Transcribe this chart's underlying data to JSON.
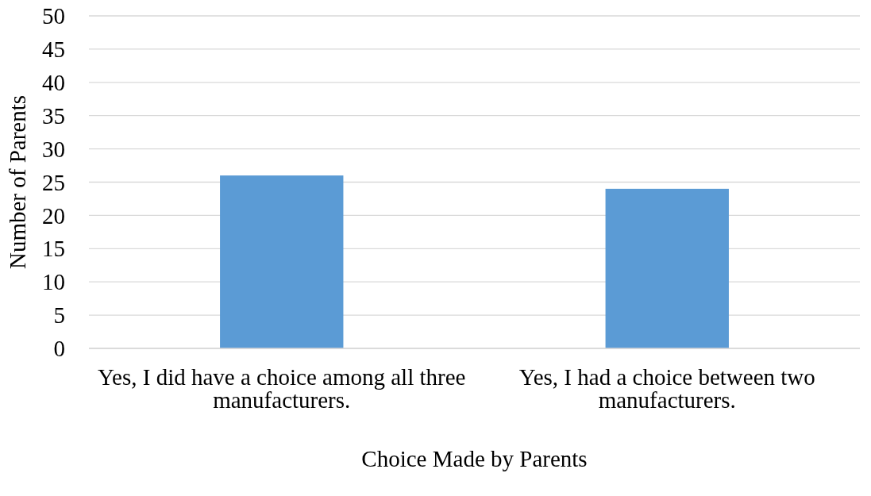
{
  "chart_data": {
    "type": "bar",
    "xlabel": "Choice Made by Parents",
    "ylabel": "Number of Parents",
    "categories": [
      "Yes, I did have a choice among all three manufacturers.",
      "Yes, I had a choice between two manufacturers."
    ],
    "values": [
      26,
      24
    ],
    "color": "#5b9bd5",
    "ylim": [
      0,
      50
    ],
    "yticks": [
      0,
      5,
      10,
      15,
      20,
      25,
      30,
      35,
      40,
      45,
      50
    ],
    "grid": "y"
  }
}
